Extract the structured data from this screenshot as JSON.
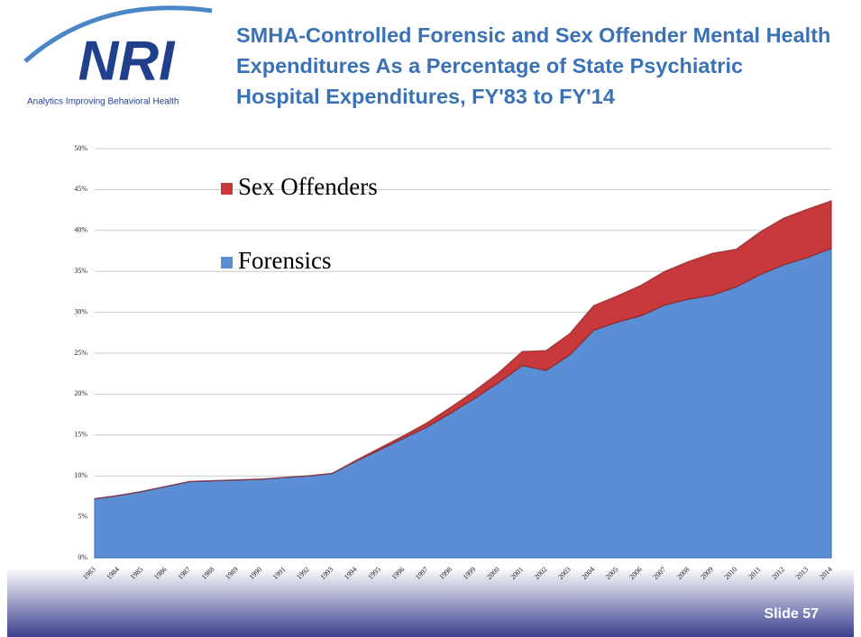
{
  "header": {
    "logo": "NRI",
    "tagline": "Analytics Improving Behavioral Health",
    "title": "SMHA-Controlled Forensic and Sex Offender Mental Health Expenditures As a Percentage of State Psychiatric Hospital Expenditures, FY'83 to FY'14"
  },
  "chart_data": {
    "type": "stacked-area",
    "categories": [
      "1983",
      "1984",
      "1985",
      "1986",
      "1987",
      "1988",
      "1989",
      "1990",
      "1991",
      "1992",
      "1993",
      "1994",
      "1995",
      "1996",
      "1997",
      "1998",
      "1999",
      "2000",
      "2001",
      "2002",
      "2003",
      "2004",
      "2005",
      "2006",
      "2007",
      "2008",
      "2009",
      "2010",
      "2011",
      "2012",
      "2013",
      "2014"
    ],
    "series": [
      {
        "name": "Forensics",
        "color": "#5b8fd5",
        "values": [
          7.2,
          7.6,
          8.1,
          8.7,
          9.3,
          9.4,
          9.5,
          9.6,
          9.8,
          10.0,
          10.3,
          11.8,
          13.2,
          14.6,
          16.0,
          17.7,
          19.5,
          21.4,
          23.5,
          22.9,
          24.8,
          27.8,
          28.8,
          29.6,
          30.9,
          31.6,
          32.1,
          33.1,
          34.6,
          35.8,
          36.7,
          37.8
        ]
      },
      {
        "name": "Sex Offenders",
        "color": "#c8393b",
        "values": [
          0,
          0,
          0,
          0,
          0,
          0,
          0,
          0,
          0,
          0,
          0,
          0.1,
          0.2,
          0.3,
          0.5,
          0.7,
          0.9,
          1.2,
          1.7,
          2.4,
          2.6,
          3.0,
          3.2,
          3.7,
          4.1,
          4.6,
          5.1,
          4.6,
          5.2,
          5.7,
          5.9,
          5.8
        ]
      }
    ],
    "ylim": [
      0,
      50
    ],
    "yticks": [
      {
        "value": 0,
        "label": "0%"
      },
      {
        "value": 5,
        "label": "5%"
      },
      {
        "value": 10,
        "label": "10%"
      },
      {
        "value": 15,
        "label": "15%"
      },
      {
        "value": 20,
        "label": "20%"
      },
      {
        "value": 25,
        "label": "25%"
      },
      {
        "value": 30,
        "label": "30%"
      },
      {
        "value": 35,
        "label": "35%"
      },
      {
        "value": 40,
        "label": "40%"
      },
      {
        "value": 45,
        "label": "45%"
      },
      {
        "value": 50,
        "label": "50%"
      }
    ],
    "grid": true
  },
  "footer": {
    "slide": "Slide 57"
  }
}
